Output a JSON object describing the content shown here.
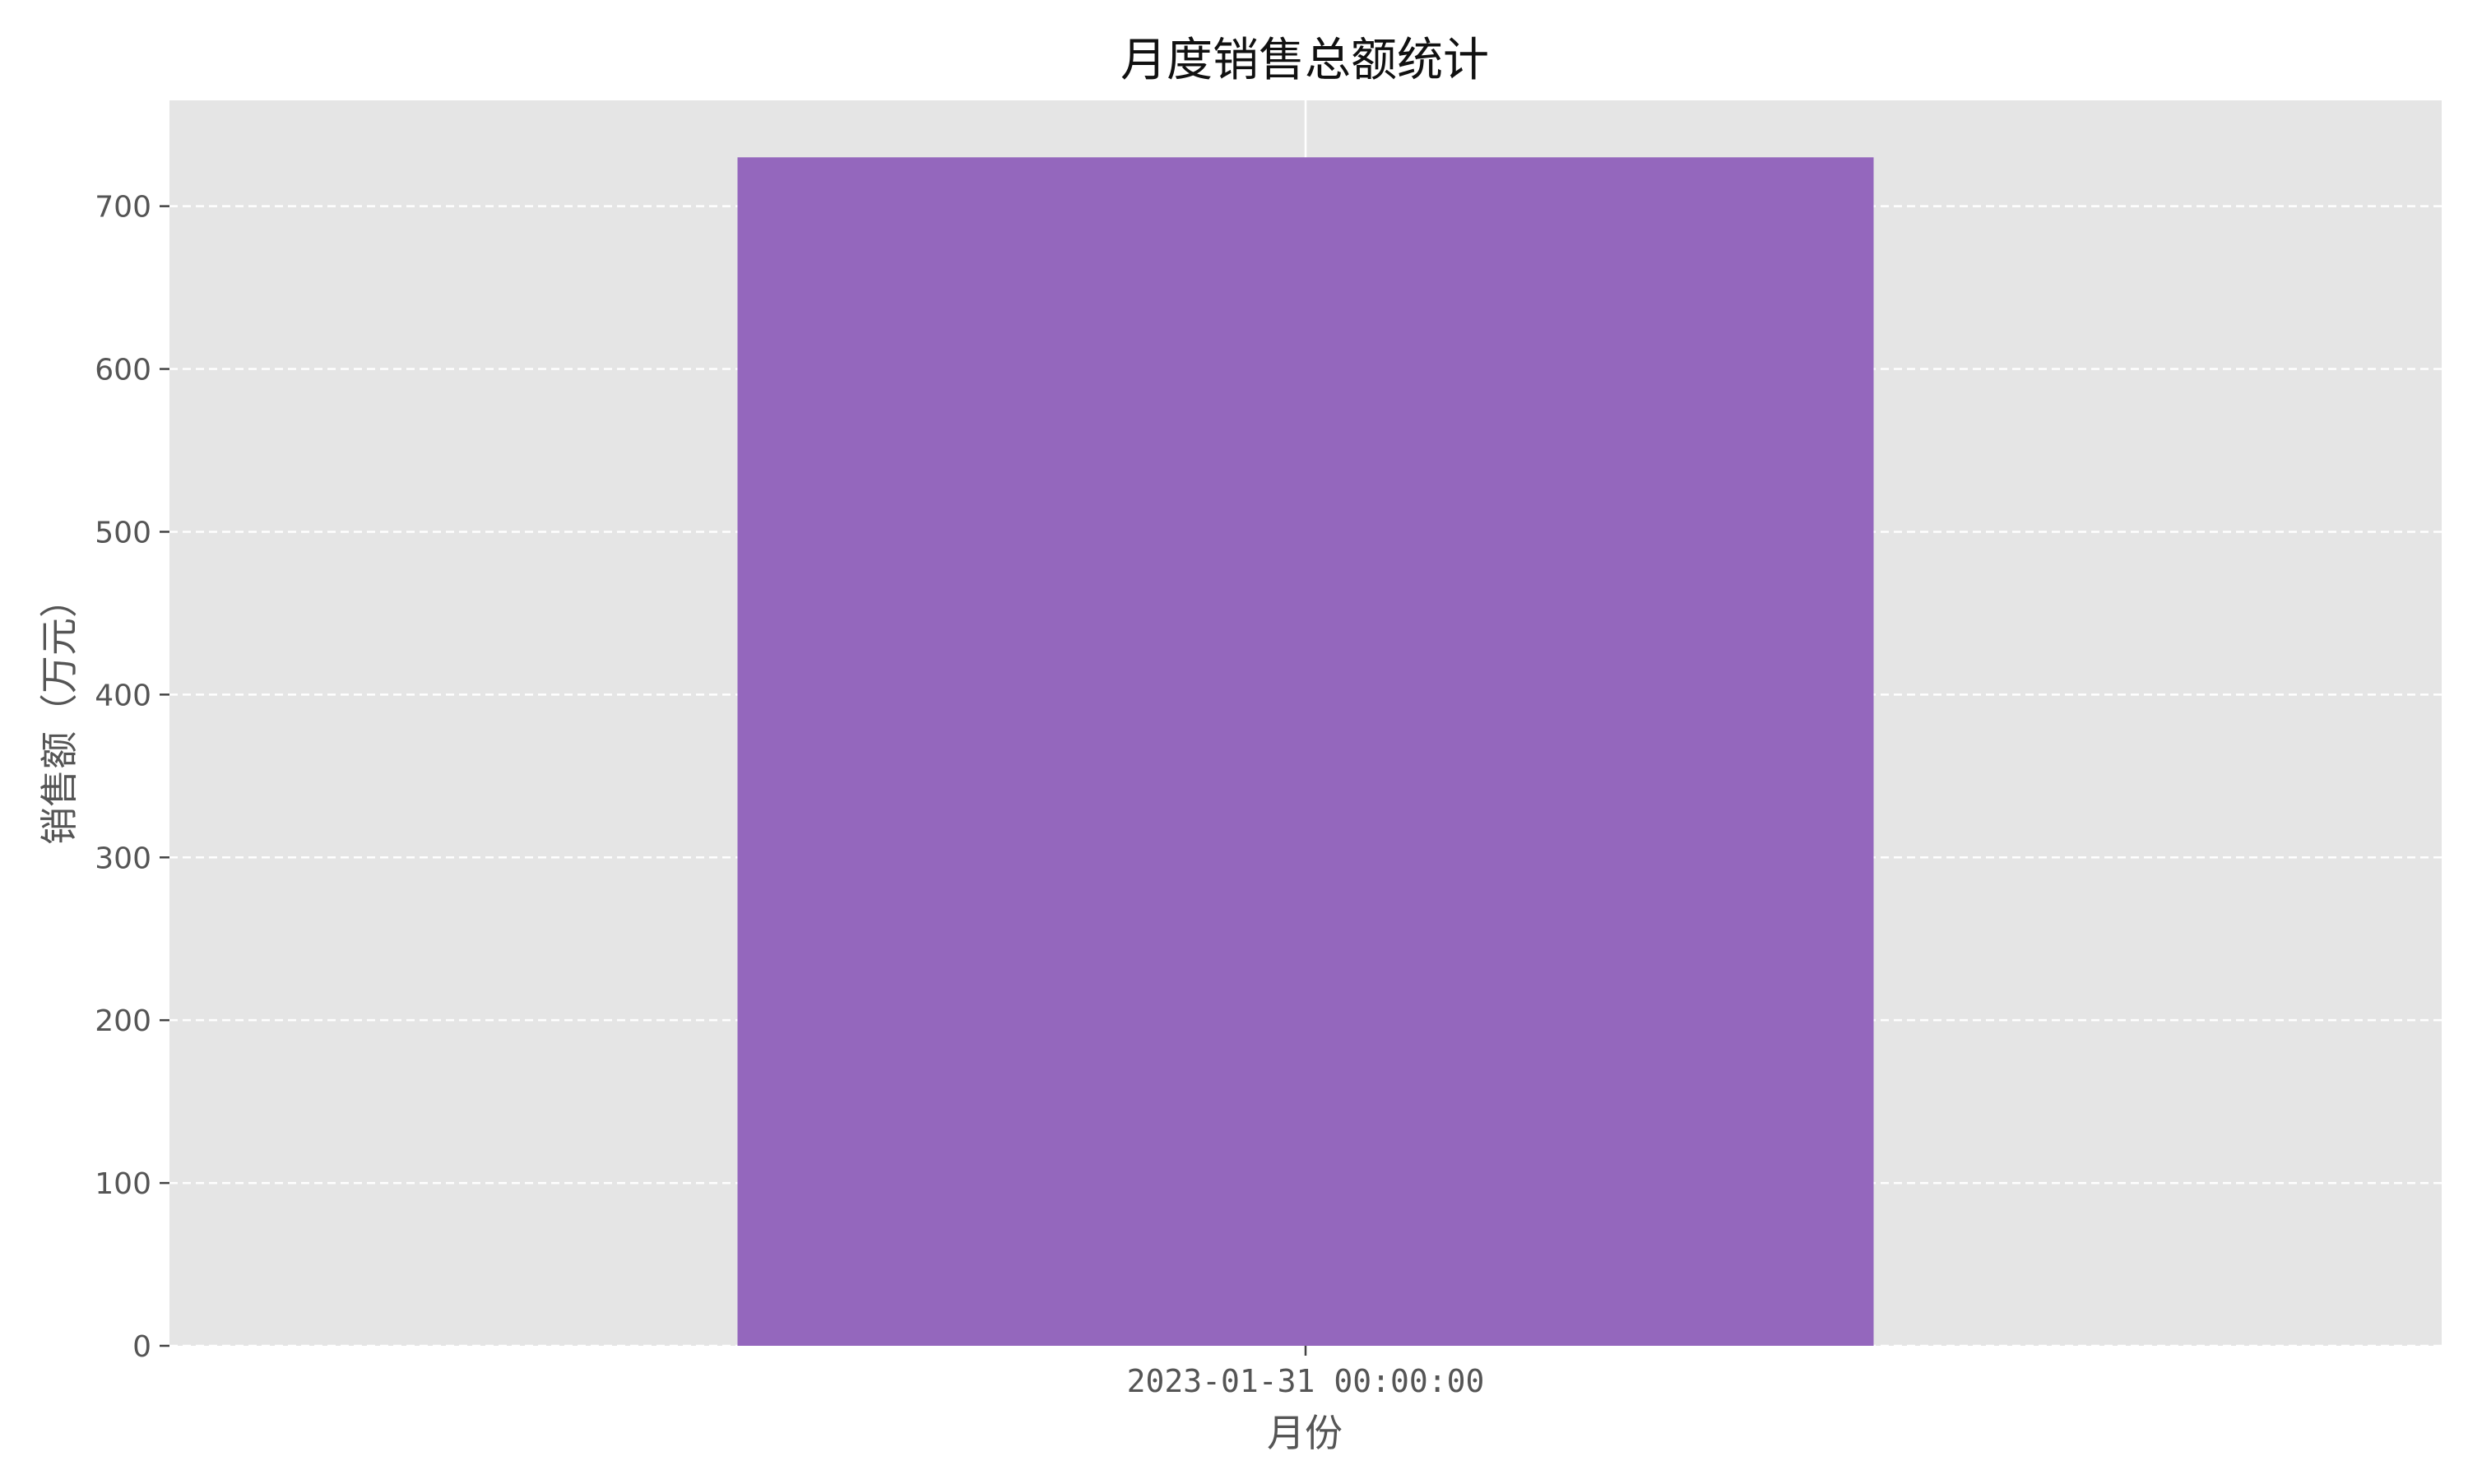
{
  "chart_data": {
    "type": "bar",
    "title": "月度销售总额统计",
    "xlabel": "月份",
    "ylabel": "销售额（万元）",
    "categories": [
      "2023-01-31 00:00:00"
    ],
    "values": [
      730
    ],
    "ylim": [
      0,
      765
    ],
    "yticks": [
      0,
      100,
      200,
      300,
      400,
      500,
      600,
      700
    ],
    "grid": {
      "y": true,
      "x": true,
      "y_style": "dashed"
    },
    "colors": {
      "bar": "#9467bd",
      "plot_background": "#e5e5e5",
      "grid": "#ffffff"
    }
  }
}
